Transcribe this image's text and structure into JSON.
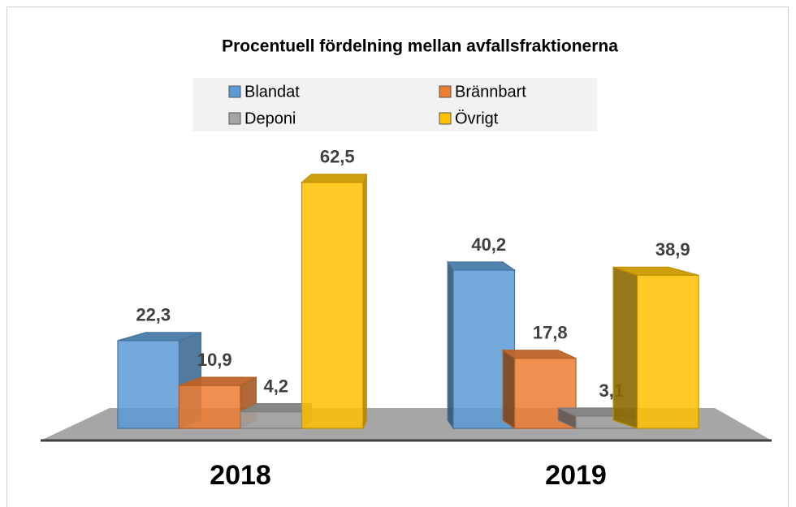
{
  "chart_data": {
    "type": "bar3d",
    "title": "Procentuell fördelning mellan avfallsfraktionerna",
    "categories": [
      "2018",
      "2019"
    ],
    "series": [
      {
        "name": "Blandat",
        "color": "#5b9bd5",
        "values": [
          22.3,
          40.2
        ],
        "value_labels": [
          "22,3",
          "40,2"
        ]
      },
      {
        "name": "Brännbart",
        "color": "#ed7d31",
        "values": [
          10.9,
          17.8
        ],
        "value_labels": [
          "10,9",
          "17,8"
        ]
      },
      {
        "name": "Deponi",
        "color": "#a5a5a5",
        "values": [
          4.2,
          3.1
        ],
        "value_labels": [
          "4,2",
          "3,1"
        ]
      },
      {
        "name": "Övrigt",
        "color": "#ffc000",
        "values": [
          62.5,
          38.9
        ],
        "value_labels": [
          "62,5",
          "38,9"
        ]
      }
    ],
    "legend": "top"
  }
}
